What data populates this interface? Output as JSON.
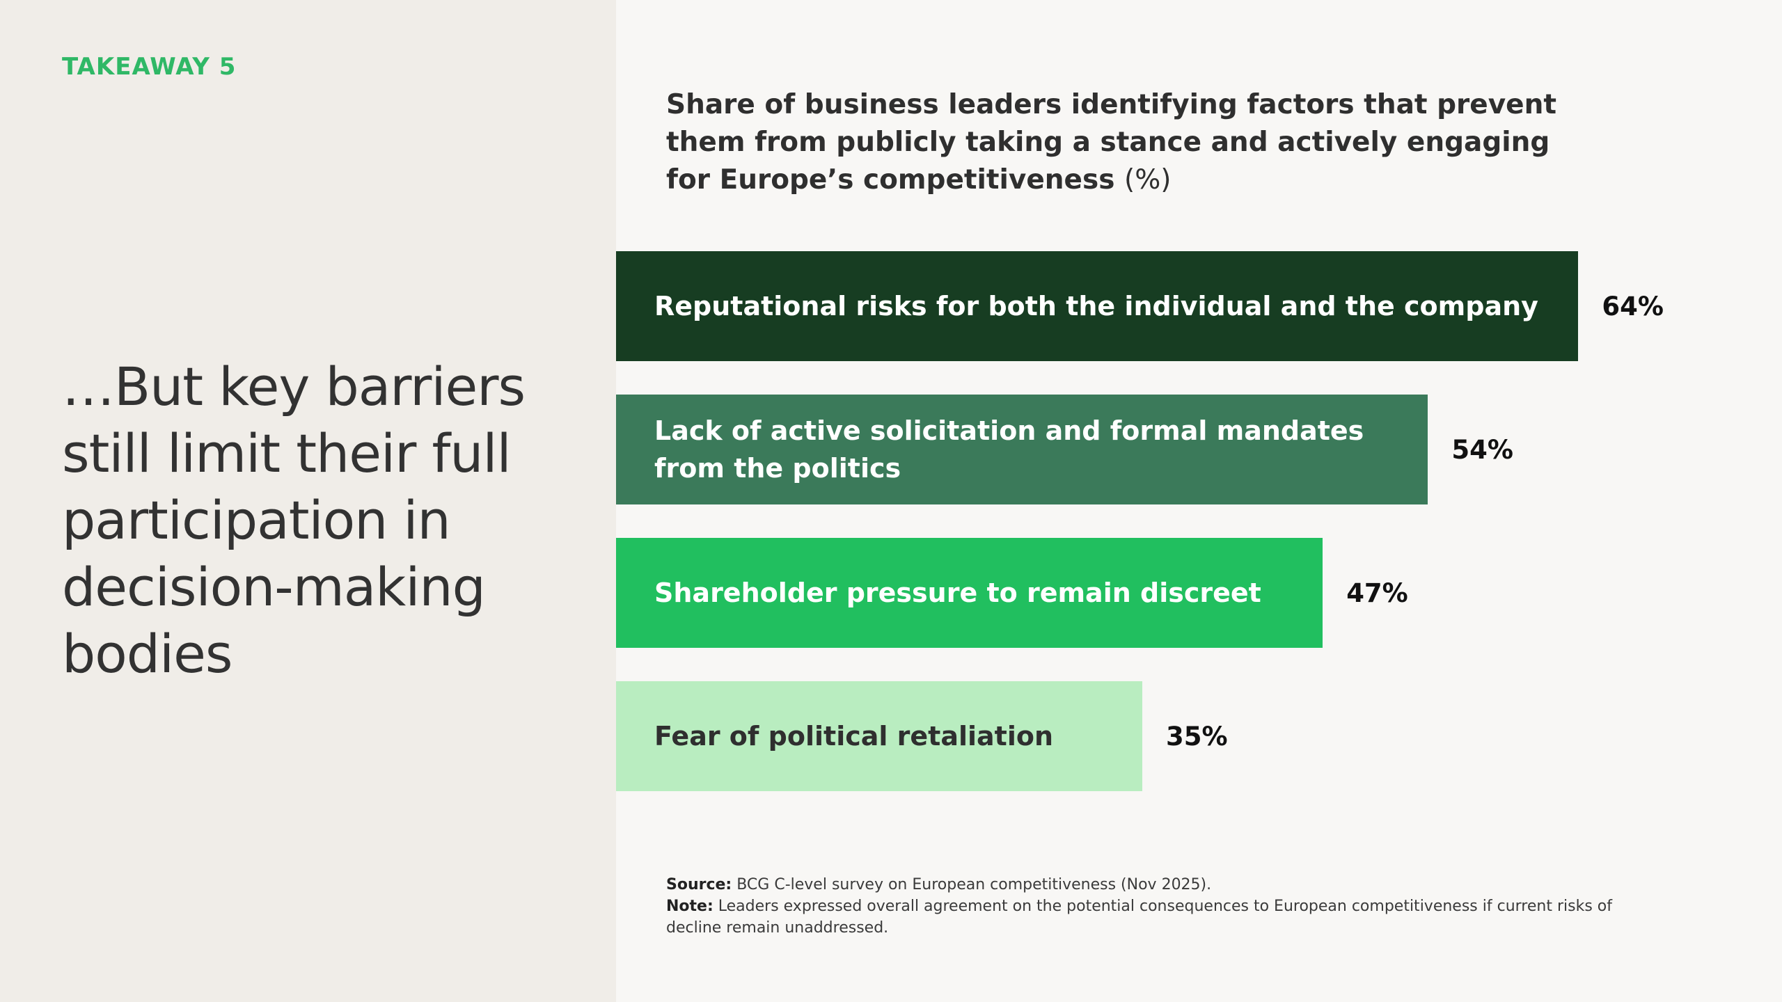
{
  "left": {
    "takeaway": "TAKEAWAY 5",
    "headline": "…But key barriers still limit their full participation in decision-making bodies"
  },
  "chart_data": {
    "type": "bar",
    "orientation": "horizontal",
    "title": "Share of business leaders identifying factors that prevent them from publicly taking a stance and actively engaging for Europe’s competitiveness",
    "title_unit": "(%)",
    "categories": [
      "Reputational risks for both the individual and the company",
      "Lack of active solicitation and formal mandates\nfrom the politics",
      "Shareholder pressure to remain discreet",
      "Fear of political retaliation"
    ],
    "values": [
      64,
      54,
      47,
      35
    ],
    "value_labels": [
      "64%",
      "54%",
      "47%",
      "35%"
    ],
    "colors": [
      "#173d22",
      "#3b7a5a",
      "#21bf5f",
      "#b9edc0"
    ],
    "label_colors": [
      "#ffffff",
      "#ffffff",
      "#ffffff",
      "#2f2f2f"
    ],
    "xlim": [
      0,
      100
    ],
    "grid": false,
    "legend": "none"
  },
  "footnote": {
    "source_label": "Source:",
    "source_text": " BCG C-level survey on European competitiveness (Nov 2025).",
    "note_label": "Note:",
    "note_text": " Leaders expressed overall agreement on the potential consequences to European competitiveness if current risks of decline remain unaddressed."
  }
}
